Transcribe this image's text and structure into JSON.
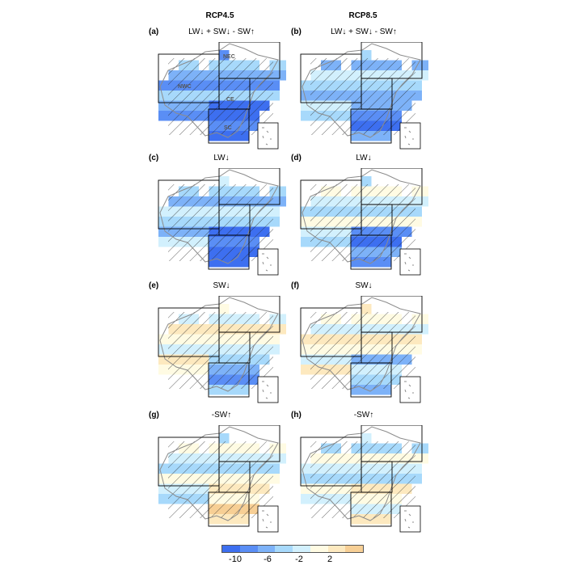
{
  "columns": [
    "RCP4.5",
    "RCP8.5"
  ],
  "panels": [
    {
      "letter": "(a)",
      "var": "LW↓ + SW↓ - SW↑"
    },
    {
      "letter": "(b)",
      "var": "LW↓ + SW↓ - SW↑"
    },
    {
      "letter": "(c)",
      "var": "LW↓"
    },
    {
      "letter": "(d)",
      "var": "LW↓"
    },
    {
      "letter": "(e)",
      "var": "SW↓"
    },
    {
      "letter": "(f)",
      "var": "SW↓"
    },
    {
      "letter": "(g)",
      "var": "-SW↑"
    },
    {
      "letter": "(h)",
      "var": "-SW↑"
    }
  ],
  "region_labels": [
    "NEC",
    "NWC",
    "CE",
    "SC"
  ],
  "colorbar": {
    "tick_labels": [
      "-10",
      "-6",
      "-2",
      "2"
    ],
    "colors": [
      "#3d6ff0",
      "#5a8ef5",
      "#7db2f8",
      "#a7d9fb",
      "#d2f0fd",
      "#fffbe3",
      "#fde9bf",
      "#f7cf95"
    ]
  },
  "palette": {
    "grid": "#000000",
    "coast": "#8c8c8c",
    "hatch": "#222222"
  },
  "chart_data": {
    "type": "heatmap",
    "colorbar_ticks": [
      -10,
      -6,
      -2,
      2
    ],
    "panels": [
      {
        "panel": "(a)",
        "scenario": "RCP4.5",
        "variable": "LW↓ + SW↓ - SW↑",
        "dominant_level": 2,
        "south_level": 0
      },
      {
        "panel": "(b)",
        "scenario": "RCP8.5",
        "variable": "LW↓ + SW↓ - SW↑",
        "dominant_level": 3,
        "south_level": 1
      },
      {
        "panel": "(c)",
        "scenario": "RCP4.5",
        "variable": "LW↓",
        "dominant_level": 3,
        "south_level": 0
      },
      {
        "panel": "(d)",
        "scenario": "RCP8.5",
        "variable": "LW↓",
        "dominant_level": 4,
        "south_level": 1
      },
      {
        "panel": "(e)",
        "scenario": "RCP4.5",
        "variable": "SW↓",
        "dominant_level": 5,
        "south_level": 2
      },
      {
        "panel": "(f)",
        "scenario": "RCP8.5",
        "variable": "SW↓",
        "dominant_level": 5,
        "south_level": 3
      },
      {
        "panel": "(g)",
        "scenario": "RCP4.5",
        "variable": "-SW↑",
        "dominant_level": 4,
        "south_level": 6
      },
      {
        "panel": "(h)",
        "scenario": "RCP8.5",
        "variable": "-SW↑",
        "dominant_level": 4,
        "south_level": 5
      }
    ]
  }
}
